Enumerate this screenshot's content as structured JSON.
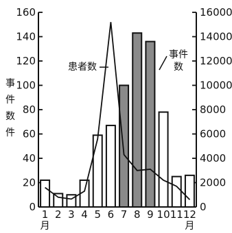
{
  "chart_data": {
    "type": "bar",
    "categories": [
      "1",
      "2",
      "3",
      "4",
      "5",
      "6",
      "7",
      "8",
      "9",
      "10",
      "11",
      "12"
    ],
    "month_suffix": "月",
    "grid": false,
    "series": [
      {
        "name": "事件数",
        "type": "bar",
        "axis": "left",
        "values": [
          22,
          11,
          10,
          22,
          59,
          67,
          100,
          143,
          136,
          78,
          25,
          26
        ],
        "fill_by_category": [
          "white",
          "white",
          "white",
          "white",
          "white",
          "white",
          "gray",
          "gray",
          "gray",
          "white",
          "white",
          "white"
        ],
        "label_text": "事件\n数"
      },
      {
        "name": "患者数",
        "type": "line",
        "axis": "right",
        "values": [
          1600,
          800,
          650,
          1300,
          5600,
          15200,
          4300,
          3000,
          3100,
          2200,
          1700,
          600
        ],
        "label_text": "患者数"
      }
    ],
    "left_axis": {
      "label": "事件数(件)",
      "ylim": [
        0,
        160
      ],
      "ticks": [
        "0",
        "20",
        "40",
        "60",
        "80",
        "100",
        "120",
        "140",
        "160"
      ]
    },
    "right_axis": {
      "label": "",
      "ylim": [
        0,
        16000
      ],
      "ticks": [
        "0",
        "2000",
        "4000",
        "6000",
        "8000",
        "10000",
        "12000",
        "14000",
        "16000"
      ]
    },
    "colors": {
      "axis": "#111111",
      "bar_white": "#ffffff",
      "bar_gray": "#8a8a8a",
      "line": "#111111"
    }
  }
}
